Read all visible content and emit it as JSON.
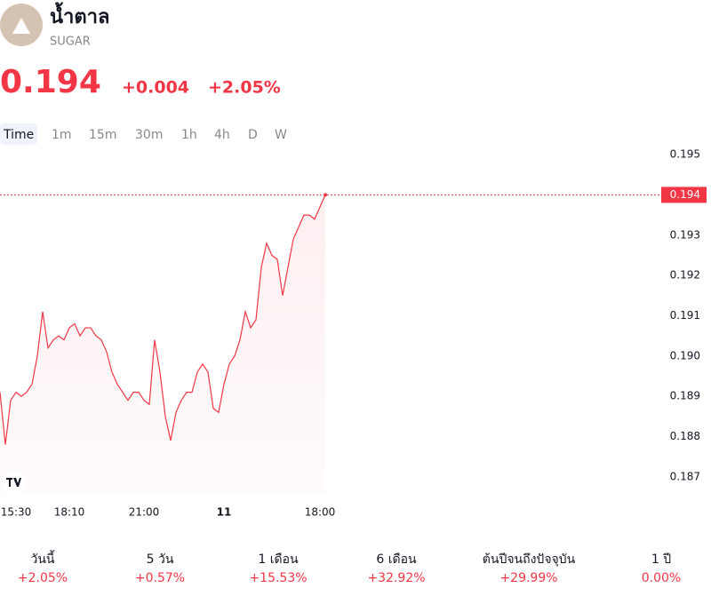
{
  "header": {
    "title": "น้ำตาล",
    "symbol": "SUGAR",
    "price": "0.194",
    "change": "+0.004",
    "change_percent": "+2.05%"
  },
  "tabs": [
    "Time",
    "1m",
    "15m",
    "30m",
    "1h",
    "4h",
    "D",
    "W"
  ],
  "chart_data": {
    "type": "line",
    "categories": [
      null,
      null,
      null,
      "15:30",
      null,
      null,
      null,
      null,
      null,
      null,
      null,
      null,
      null,
      "18:10",
      null,
      null,
      null,
      null,
      null,
      null,
      null,
      null,
      null,
      null,
      null,
      null,
      null,
      "21:00",
      null,
      null,
      null,
      null,
      null,
      null,
      null,
      null,
      null,
      null,
      null,
      null,
      null,
      null,
      "11",
      null,
      null,
      null,
      null,
      null,
      null,
      null,
      null,
      null,
      null,
      null,
      null,
      null,
      null,
      null,
      null,
      null,
      "18:00",
      null
    ],
    "series": [
      {
        "color": "#f23645",
        "values": [
          0.1891,
          0.1878,
          0.1889,
          0.1891,
          0.189,
          0.1891,
          0.1893,
          0.19,
          0.1911,
          0.1902,
          0.1904,
          0.1905,
          0.1904,
          0.1907,
          0.1908,
          0.1905,
          0.1907,
          0.1907,
          0.1905,
          0.1904,
          0.1901,
          0.1896,
          0.1893,
          0.1891,
          0.1889,
          0.1891,
          0.1891,
          0.1889,
          0.1888,
          0.1904,
          0.1896,
          0.1885,
          0.1879,
          0.1886,
          0.1889,
          0.1891,
          0.1891,
          0.1896,
          0.1898,
          0.1896,
          0.1887,
          0.1886,
          0.1893,
          0.1898,
          0.19,
          0.1904,
          0.1911,
          0.1907,
          0.1909,
          0.1922,
          0.1928,
          0.1925,
          0.1924,
          0.1915,
          0.1922,
          0.1929,
          0.1932,
          0.1935,
          0.1935,
          0.1934,
          0.1937,
          0.194
        ]
      }
    ],
    "ylim": [
      0.1866,
      0.1952
    ],
    "yticks": [
      0.187,
      0.188,
      0.189,
      {
        "value": 0.19,
        "label": "0.190"
      },
      0.191,
      0.192,
      0.193,
      0.194,
      0.195
    ]
  },
  "performance": [
    {
      "label": "วันนี้",
      "value": "+2.05%"
    },
    {
      "label": "5 วัน",
      "value": "+0.57%"
    },
    {
      "label": "1 เดือน",
      "value": "+15.53%"
    },
    {
      "label": "6 เดือน",
      "value": "+32.92%"
    },
    {
      "label": "ต้นปีจนถึงปัจจุบัน",
      "value": "+29.99%"
    },
    {
      "label": "1 ปี",
      "value": "0.00%"
    }
  ]
}
